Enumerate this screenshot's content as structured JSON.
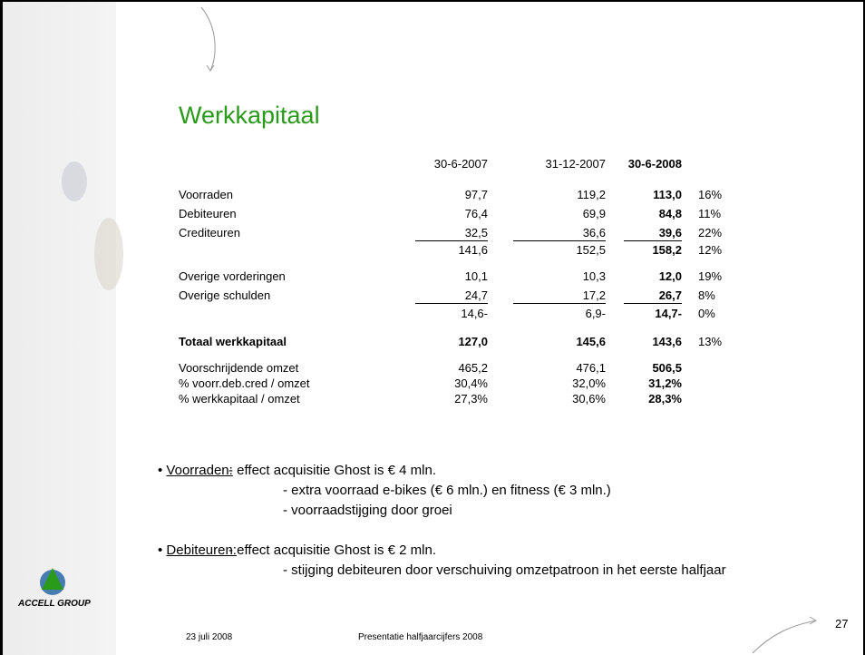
{
  "title": "Werkkapitaal",
  "table": {
    "header": [
      "30-6-2007",
      "31-12-2007",
      "30-6-2008"
    ],
    "rows": [
      {
        "label": "Voorraden",
        "values": [
          "97,7",
          "119,2",
          "113,0"
        ],
        "pct": "16%"
      },
      {
        "label": "Debiteuren",
        "values": [
          "76,4",
          "69,9",
          "84,8"
        ],
        "pct": "11%"
      },
      {
        "label": "Crediteuren",
        "values": [
          "32,5",
          "36,6",
          "39,6"
        ],
        "pct": "22%"
      },
      {
        "values": [
          "141,6",
          "152,5",
          "158,2"
        ],
        "pct": "12%"
      },
      {
        "label": "Overige vorderingen",
        "values": [
          "10,1",
          "10,3",
          "12,0"
        ],
        "pct": "19%"
      },
      {
        "label": "Overige schulden",
        "values": [
          "24,7",
          "17,2",
          "26,7"
        ],
        "pct": "8%"
      },
      {
        "values": [
          "14,6-",
          "6,9-",
          "14,7-"
        ],
        "pct": "0%"
      },
      {
        "label": "Totaal werkkapitaal",
        "values": [
          "127,0",
          "145,6",
          "143,6"
        ],
        "pct": "13%"
      },
      {
        "label": "Voorschrijdende omzet",
        "values": [
          "465,2",
          "476,1",
          "506,5"
        ]
      },
      {
        "label": "% voorr.deb.cred / omzet",
        "values": [
          "30,4%",
          "32,0%",
          "31,2%"
        ]
      },
      {
        "label": "% werkkapitaal / omzet",
        "values": [
          "27,3%",
          "30,6%",
          "28,3%"
        ]
      }
    ]
  },
  "bullets": [
    {
      "heading": "Voorraden:",
      "lines": [
        "- effect acquisitie Ghost is € 4 mln.",
        "- extra voorraad e-bikes (€ 6 mln.) en fitness (€ 3 mln.)",
        "- voorraadstijging door groei"
      ]
    },
    {
      "heading": "Debiteuren:",
      "lines": [
        "- effect acquisitie Ghost is € 2 mln.",
        "- stijging debiteuren door verschuiving omzetpatroon in het eerste halfjaar"
      ]
    }
  ],
  "logo": "ACCELL GROUP",
  "footer": {
    "date": "23 juli 2008",
    "presentation": "Presentatie halfjaarcijfers 2008",
    "page": "27"
  }
}
